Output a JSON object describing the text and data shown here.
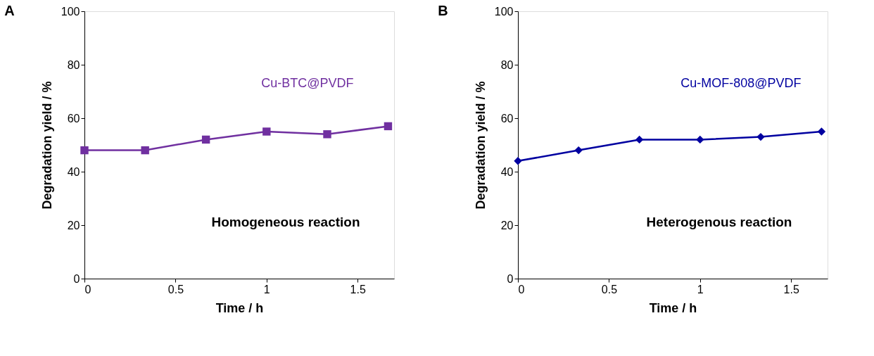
{
  "chart_data": [
    {
      "type": "line",
      "title": "A",
      "xlabel": "Time / h",
      "ylabel": "Degradation yield / %",
      "x": [
        0,
        0.333,
        0.667,
        1,
        1.333,
        1.667
      ],
      "series": [
        {
          "name": "Cu-BTC@PVDF",
          "color": "#7030a0",
          "values": [
            48,
            48,
            52,
            55,
            54,
            57
          ]
        }
      ],
      "xlim": [
        0,
        1.7
      ],
      "xticks": [
        0,
        0.5,
        1,
        1.5
      ],
      "ylim": [
        0,
        100
      ],
      "yticks": [
        0,
        20,
        40,
        60,
        80,
        100
      ],
      "grid": false,
      "marker": "square",
      "line_style": "solid",
      "annotations": [
        "Homogeneous reaction"
      ]
    },
    {
      "type": "line",
      "title": "B",
      "xlabel": "Time / h",
      "ylabel": "Degradation yield / %",
      "x": [
        0,
        0.333,
        0.667,
        1,
        1.333,
        1.667
      ],
      "series": [
        {
          "name": "Cu-MOF-808@PVDF",
          "color": "#0000a0",
          "values": [
            44,
            48,
            52,
            52,
            53,
            55
          ]
        }
      ],
      "xlim": [
        0,
        1.7
      ],
      "xticks": [
        0,
        0.5,
        1,
        1.5
      ],
      "ylim": [
        0,
        100
      ],
      "yticks": [
        0,
        20,
        40,
        60,
        80,
        100
      ],
      "grid": false,
      "marker": "diamond",
      "line_style": "solid",
      "annotations": [
        "Heterogenous reaction"
      ]
    }
  ]
}
